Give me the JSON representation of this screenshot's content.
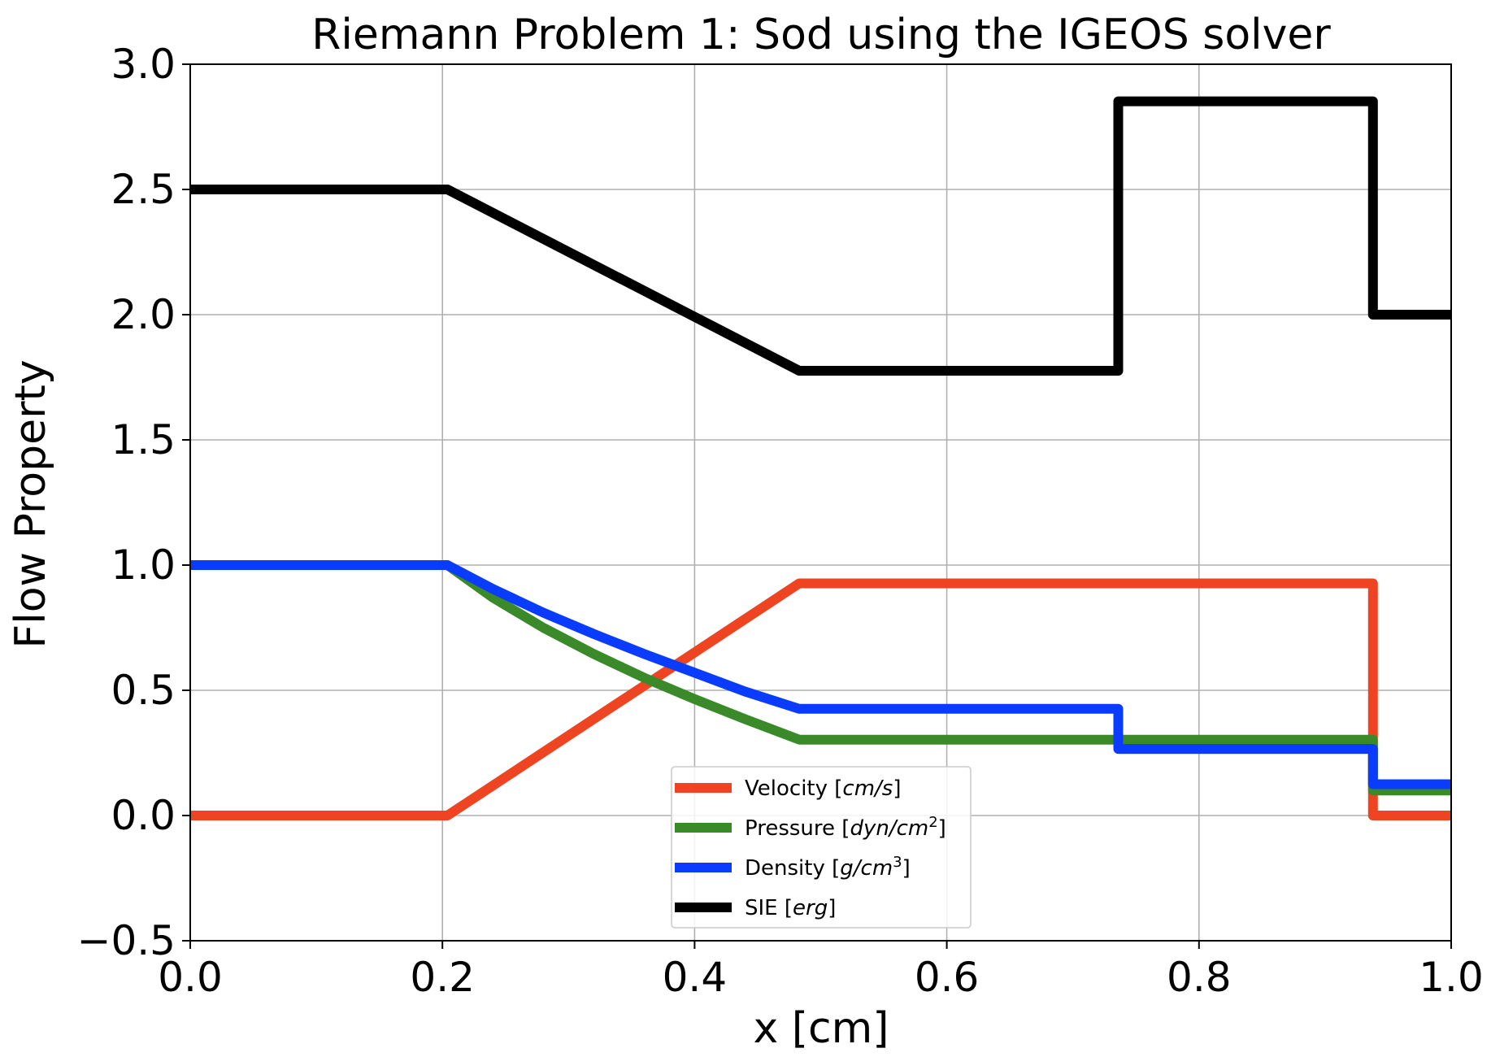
{
  "chart_data": {
    "type": "line",
    "title": "Riemann Problem 1: Sod using the IGEOS solver",
    "xlabel": "x [cm]",
    "ylabel": "Flow Property",
    "xlim": [
      0.0,
      1.0
    ],
    "ylim": [
      -0.5,
      3.0
    ],
    "xticks": [
      "0.0",
      "0.2",
      "0.4",
      "0.6",
      "0.8",
      "1.0"
    ],
    "yticks": [
      "−0.5",
      "0.0",
      "0.5",
      "1.0",
      "1.5",
      "2.0",
      "2.5",
      "3.0"
    ],
    "grid": true,
    "legend_position": "bottom-center",
    "series": [
      {
        "name": "Velocity",
        "unit": "cm/s",
        "unit_sup": "",
        "color": "#ee4422",
        "x": [
          0.0,
          0.204,
          0.483,
          0.736,
          0.938,
          0.938,
          1.0
        ],
        "y": [
          0.0,
          0.0,
          0.927,
          0.927,
          0.927,
          0.0,
          0.0
        ]
      },
      {
        "name": "Pressure",
        "unit": "dyn/cm",
        "unit_sup": "2",
        "color": "#3a8a2a",
        "x": [
          0.0,
          0.204,
          0.24,
          0.28,
          0.32,
          0.36,
          0.4,
          0.44,
          0.483,
          0.736,
          0.938,
          0.938,
          1.0
        ],
        "y": [
          1.0,
          1.0,
          0.87,
          0.75,
          0.645,
          0.55,
          0.465,
          0.385,
          0.303,
          0.303,
          0.303,
          0.1,
          0.1
        ]
      },
      {
        "name": "Density",
        "unit": "g/cm",
        "unit_sup": "3",
        "color": "#0a3cff",
        "x": [
          0.0,
          0.204,
          0.24,
          0.28,
          0.32,
          0.36,
          0.4,
          0.44,
          0.483,
          0.736,
          0.736,
          0.938,
          0.938,
          1.0
        ],
        "y": [
          1.0,
          1.0,
          0.905,
          0.81,
          0.725,
          0.645,
          0.57,
          0.495,
          0.426,
          0.426,
          0.266,
          0.266,
          0.125,
          0.125
        ]
      },
      {
        "name": "SIE",
        "unit": "erg",
        "unit_sup": "",
        "color": "#000000",
        "x": [
          0.0,
          0.204,
          0.483,
          0.736,
          0.736,
          0.938,
          0.938,
          1.0
        ],
        "y": [
          2.5,
          2.5,
          1.776,
          1.776,
          2.852,
          2.852,
          2.0,
          2.0
        ]
      }
    ]
  }
}
